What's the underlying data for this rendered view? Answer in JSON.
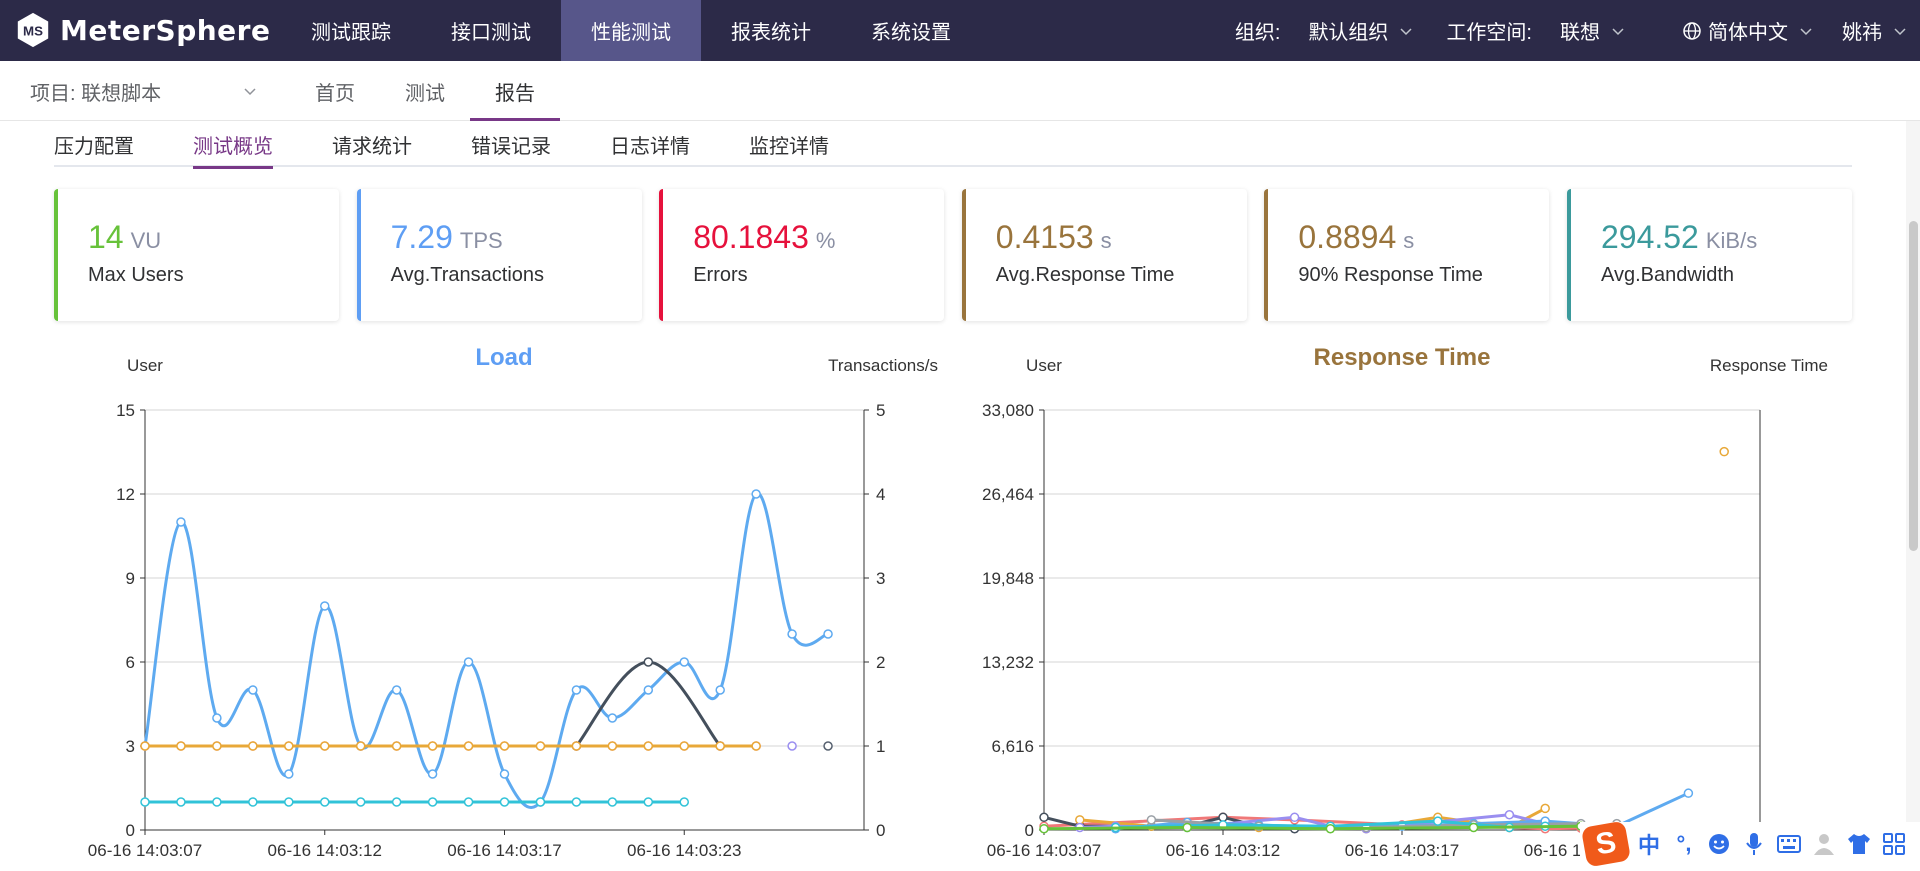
{
  "brand": {
    "name": "MeterSphere"
  },
  "topnav": {
    "items": [
      {
        "label": "测试跟踪"
      },
      {
        "label": "接口测试"
      },
      {
        "label": "性能测试"
      },
      {
        "label": "报表统计"
      },
      {
        "label": "系统设置"
      }
    ],
    "active_index": 2,
    "org_label": "组织:",
    "org_value": "默认组织",
    "workspace_label": "工作空间:",
    "workspace_value": "联想",
    "language": "简体中文",
    "user": "姚祎"
  },
  "subnav": {
    "project": "项目: 联想脚本",
    "items": [
      {
        "label": "首页"
      },
      {
        "label": "测试"
      },
      {
        "label": "报告"
      }
    ],
    "active_index": 2
  },
  "tabs": {
    "items": [
      {
        "label": "压力配置"
      },
      {
        "label": "测试概览"
      },
      {
        "label": "请求统计"
      },
      {
        "label": "错误记录"
      },
      {
        "label": "日志详情"
      },
      {
        "label": "监控详情"
      }
    ],
    "active_index": 1
  },
  "cards": [
    {
      "value": "14",
      "unit": "VU",
      "title": "Max Users",
      "color": "#67c23a"
    },
    {
      "value": "7.29",
      "unit": "TPS",
      "title": "Avg.Transactions",
      "color": "#5e9ef4"
    },
    {
      "value": "80.1843",
      "unit": "%",
      "title": "Errors",
      "color": "#e6113c"
    },
    {
      "value": "0.4153",
      "unit": "s",
      "title": "Avg.Response Time",
      "color": "#99743c"
    },
    {
      "value": "0.8894",
      "unit": "s",
      "title": "90% Response Time",
      "color": "#99743c"
    },
    {
      "value": "294.52",
      "unit": "KiB/s",
      "title": "Avg.Bandwidth",
      "color": "#3b9a9c"
    }
  ],
  "chart_data": [
    {
      "type": "line",
      "title": "Load",
      "title_color": "#5e9ef4",
      "ylabel": "User",
      "ylabel_right": "Transactions/s",
      "ylim": [
        0,
        15
      ],
      "yticks": [
        0,
        3,
        6,
        9,
        12,
        15
      ],
      "ylim_right": [
        0,
        5
      ],
      "yticks_right": [
        0,
        1,
        2,
        3,
        4,
        5
      ],
      "xlim": [
        0,
        20
      ],
      "x_tick_labels": [
        {
          "x": 0,
          "label": "06-16 14:03:07"
        },
        {
          "x": 5,
          "label": "06-16 14:03:12"
        },
        {
          "x": 10,
          "label": "06-16 14:03:17"
        },
        {
          "x": 15,
          "label": "06-16 14:03:23"
        }
      ],
      "grid": true,
      "series": [
        {
          "color": "#5eaaf0",
          "axis": "left",
          "smooth": true,
          "x": [
            0,
            1,
            2,
            3,
            4,
            5,
            6,
            7,
            8,
            9,
            10,
            11,
            12,
            13,
            14,
            15,
            16,
            17,
            18,
            19
          ],
          "values": [
            3,
            11,
            4,
            5,
            2,
            8,
            3,
            5,
            2,
            6,
            2,
            1,
            5,
            4,
            5,
            6,
            5,
            12,
            7,
            7
          ]
        },
        {
          "color": "#444f5c",
          "axis": "left",
          "smooth": true,
          "x": [
            12,
            14,
            16
          ],
          "values": [
            3,
            6,
            3
          ]
        },
        {
          "color": "#f07878",
          "axis": "left",
          "smooth": false,
          "x": [
            0,
            1,
            2,
            3,
            4,
            5,
            6,
            7,
            8,
            9,
            10,
            11,
            12,
            13,
            14,
            15,
            16,
            17
          ],
          "values": [
            3,
            3,
            3,
            3,
            3,
            3,
            3,
            3,
            3,
            3,
            3,
            3,
            3,
            3,
            3,
            3,
            3,
            3
          ]
        },
        {
          "color": "#e8a838",
          "axis": "left",
          "smooth": false,
          "x": [
            0,
            1,
            2,
            3,
            4,
            5,
            6,
            7,
            8,
            9,
            10,
            11,
            12,
            13,
            14,
            15,
            16,
            17
          ],
          "values": [
            3,
            3,
            3,
            3,
            3,
            3,
            3,
            3,
            3,
            3,
            3,
            3,
            3,
            3,
            3,
            3,
            3,
            3
          ]
        },
        {
          "color": "#31c3d8",
          "axis": "left",
          "smooth": false,
          "x": [
            0,
            1,
            2,
            3,
            4,
            5,
            6,
            7,
            8,
            9,
            10,
            11,
            12,
            13,
            14,
            15
          ],
          "values": [
            1,
            1,
            1,
            1,
            1,
            1,
            1,
            1,
            1,
            1,
            1,
            1,
            1,
            1,
            1,
            1
          ]
        },
        {
          "color": "#9a8ef0",
          "axis": "left",
          "smooth": false,
          "x": [
            18
          ],
          "values": [
            3
          ]
        },
        {
          "color": "#555f6e",
          "axis": "left",
          "smooth": false,
          "x": [
            19
          ],
          "values": [
            3
          ]
        }
      ]
    },
    {
      "type": "line",
      "title": "Response Time",
      "title_color": "#99743c",
      "ylabel": "User",
      "ylabel_right": "Response Time",
      "ylim": [
        0,
        33080
      ],
      "yticks": [
        0,
        6616,
        13232,
        19848,
        26464,
        33080
      ],
      "ytick_labels": [
        "0",
        "6,616",
        "13,232",
        "19,848",
        "26,464",
        "33,080"
      ],
      "xlim": [
        0,
        20
      ],
      "x_tick_labels": [
        {
          "x": 0,
          "label": "06-16 14:03:07"
        },
        {
          "x": 5,
          "label": "06-16 14:03:12"
        },
        {
          "x": 10,
          "label": "06-16 14:03:17"
        },
        {
          "x": 15,
          "label": "06-16 14:03:23"
        }
      ],
      "grid": true,
      "series": [
        {
          "color": "#f07878",
          "x": [
            0,
            5,
            7,
            10,
            13,
            14,
            15
          ],
          "values": [
            300,
            1000,
            800,
            400,
            200,
            100,
            150
          ]
        },
        {
          "color": "#444f5c",
          "x": [
            0,
            1,
            2,
            3,
            4,
            5,
            6,
            7
          ],
          "values": [
            1000,
            300,
            300,
            300,
            300,
            1000,
            300,
            100
          ]
        },
        {
          "color": "#e8a838",
          "x": [
            1,
            3,
            4,
            6,
            8,
            9,
            11,
            13,
            14
          ],
          "values": [
            800,
            300,
            600,
            200,
            300,
            100,
            1000,
            200,
            1700
          ]
        },
        {
          "color": "#9a8ef0",
          "x": [
            1,
            2,
            4,
            7,
            8,
            9,
            13,
            14
          ],
          "values": [
            200,
            300,
            200,
            1000,
            300,
            100,
            1200,
            500
          ]
        },
        {
          "color": "#5eaaf0",
          "x": [
            2,
            4,
            6,
            8,
            10,
            12,
            14,
            16,
            18
          ],
          "values": [
            100,
            600,
            400,
            200,
            300,
            500,
            700,
            300,
            2900
          ]
        },
        {
          "color": "#9aa0a6",
          "x": [
            3,
            6,
            9,
            12,
            15,
            16
          ],
          "values": [
            800,
            300,
            200,
            400,
            500,
            500
          ]
        },
        {
          "color": "#31c3d8",
          "x": [
            2,
            5,
            8,
            11,
            13,
            14
          ],
          "values": [
            200,
            400,
            300,
            700,
            200,
            300
          ]
        },
        {
          "color": "#67c23a",
          "x": [
            0,
            4,
            8,
            12,
            15
          ],
          "values": [
            100,
            200,
            100,
            200,
            300
          ]
        },
        {
          "color": "#e8a838",
          "x": [
            19
          ],
          "values": [
            29800
          ]
        }
      ]
    }
  ]
}
